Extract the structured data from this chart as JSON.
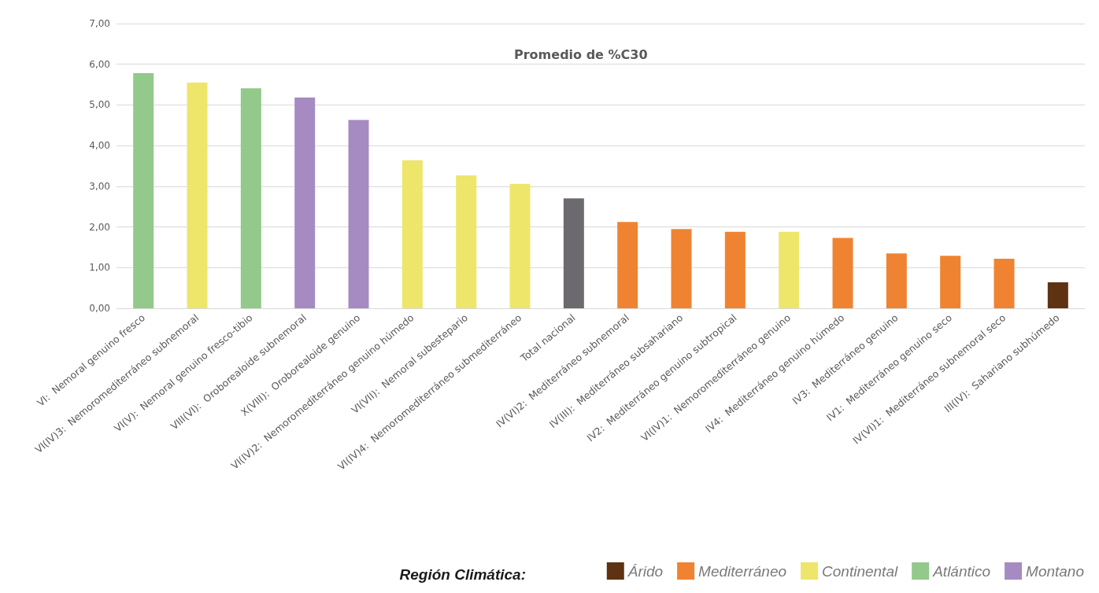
{
  "chart_data": {
    "type": "bar",
    "title": "Promedio de %C30",
    "legend_title": "Región Climática:",
    "categories": [
      "VI:  Nemoral genuino fresco",
      "VI(IV)3:  Nemoromediterráneo subnemoral",
      "VI(V):  Nemoral genuino fresco-tibio",
      "VIII(VI):  Oroborealoide subnemoral",
      "X(VIII):  Oroborealoide genuino",
      "VI(IV)2:  Nemoromediterráneo genuino húmedo",
      "VI(VII):  Nemoral subestepario",
      "VI(IV)4:  Nemoromediterráneo submediterráneo",
      "Total nacional",
      "IV(VI)2:  Mediterráneo subnemoral",
      "IV(III):  Mediterráneo subsahariano",
      "IV2:  Mediterráneo genuino subtropical",
      "VI(IV)1:  Nemoromediterráneo genuino",
      "IV4:  Mediterráneo genuino húmedo",
      "IV3:  Mediterráneo genuino",
      "IV1:  Mediterráneo genuino seco",
      "IV(VI)1:  Mediterráneo subnemoral seco",
      "III(IV):  Sahariano subhúmedo"
    ],
    "series": [
      {
        "name": "Árido",
        "color": "#5f3311",
        "values": [
          null,
          null,
          null,
          null,
          null,
          null,
          null,
          null,
          null,
          null,
          null,
          null,
          null,
          null,
          null,
          null,
          null,
          0.64
        ]
      },
      {
        "name": "Mediterráneo",
        "color": "#f08331",
        "values": [
          null,
          null,
          null,
          null,
          null,
          null,
          null,
          null,
          null,
          2.12,
          1.95,
          1.88,
          null,
          1.73,
          1.35,
          1.29,
          1.22,
          null
        ]
      },
      {
        "name": "Continental",
        "color": "#ede66a",
        "values": [
          null,
          5.55,
          null,
          null,
          null,
          3.64,
          3.27,
          3.06,
          null,
          null,
          null,
          null,
          1.88,
          null,
          null,
          null,
          null,
          null
        ]
      },
      {
        "name": "Atlántico",
        "color": "#93c98a",
        "values": [
          5.78,
          null,
          5.41,
          null,
          null,
          null,
          null,
          null,
          null,
          null,
          null,
          null,
          null,
          null,
          null,
          null,
          null,
          null
        ]
      },
      {
        "name": "Montano",
        "color": "#a68bc2",
        "values": [
          null,
          null,
          null,
          5.18,
          4.63,
          null,
          null,
          null,
          null,
          null,
          null,
          null,
          null,
          null,
          null,
          null,
          null,
          null
        ]
      },
      {
        "color": "#6d6a6f",
        "values": [
          null,
          null,
          null,
          null,
          null,
          null,
          null,
          null,
          2.7,
          null,
          null,
          null,
          null,
          null,
          null,
          null,
          null,
          null
        ]
      }
    ],
    "ylim": [
      0,
      7
    ],
    "yticks": [
      {
        "value": 0,
        "label": "0,00"
      },
      {
        "value": 1,
        "label": "1,00"
      },
      {
        "value": 2,
        "label": "2,00"
      },
      {
        "value": 3,
        "label": "3,00"
      },
      {
        "value": 4,
        "label": "4,00"
      },
      {
        "value": 5,
        "label": "5,00"
      },
      {
        "value": 6,
        "label": "6,00"
      },
      {
        "value": 7,
        "label": "7,00"
      }
    ],
    "grid": "y",
    "legend": "bottom right"
  }
}
